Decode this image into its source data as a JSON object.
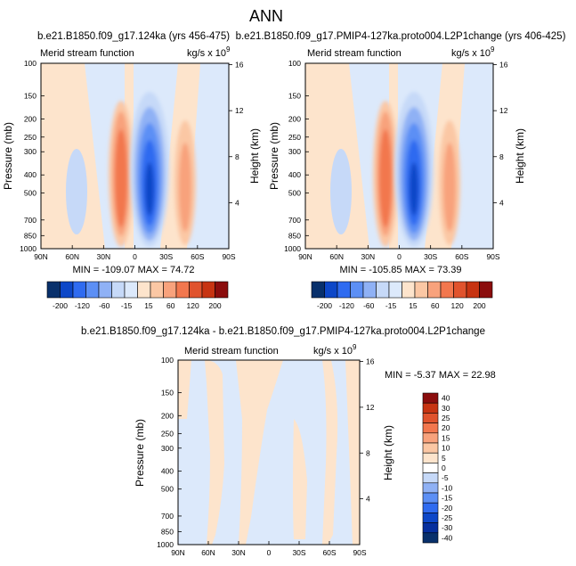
{
  "page_title": "ANN",
  "chart_data": [
    {
      "type": "heatmap",
      "title": "b.e21.B1850.f09_g17.124ka (yrs 456-475)",
      "subtitle_left": "Merid stream function",
      "units": "kg/s x 10",
      "units_exp": "9",
      "ylabel": "Pressure (mb)",
      "ylabel_right": "Height (km)",
      "x_ticks": [
        "90N",
        "60N",
        "30N",
        "0",
        "30S",
        "60S",
        "90S"
      ],
      "y_ticks": [
        "100",
        "150",
        "200",
        "250",
        "300",
        "400",
        "500",
        "700",
        "850",
        "1000"
      ],
      "y_right_ticks": [
        "16",
        "12",
        "8",
        "4"
      ],
      "stats": "MIN = -109.07   MAX =  74.72",
      "colorbar_labels": [
        "-200",
        "-120",
        "-60",
        "-15",
        "15",
        "60",
        "120",
        "200"
      ]
    },
    {
      "type": "heatmap",
      "title": "b.e21.B1850.f09_g17.PMIP4-127ka.proto004.L2P1change (yrs 406-425)",
      "subtitle_left": "Merid stream function",
      "units": "kg/s x 10",
      "units_exp": "9",
      "ylabel": "Pressure (mb)",
      "ylabel_right": "Height (km)",
      "x_ticks": [
        "90N",
        "60N",
        "30N",
        "0",
        "30S",
        "60S",
        "90S"
      ],
      "y_ticks": [
        "100",
        "150",
        "200",
        "250",
        "300",
        "400",
        "500",
        "700",
        "850",
        "1000"
      ],
      "y_right_ticks": [
        "16",
        "12",
        "8",
        "4"
      ],
      "stats": "MIN = -105.85   MAX =  73.39",
      "colorbar_labels": [
        "-200",
        "-120",
        "-60",
        "-15",
        "15",
        "60",
        "120",
        "200"
      ]
    },
    {
      "type": "heatmap",
      "title": "b.e21.B1850.f09_g17.124ka - b.e21.B1850.f09_g17.PMIP4-127ka.proto004.L2P1change",
      "subtitle_left": "Merid stream function",
      "units": "kg/s x 10",
      "units_exp": "9",
      "ylabel": "Pressure (mb)",
      "ylabel_right": "Height (km)",
      "x_ticks": [
        "90N",
        "60N",
        "30N",
        "0",
        "30S",
        "60S",
        "90S"
      ],
      "y_ticks": [
        "100",
        "150",
        "200",
        "250",
        "300",
        "400",
        "500",
        "700",
        "850",
        "1000"
      ],
      "y_right_ticks": [
        "16",
        "12",
        "8",
        "4"
      ],
      "stats": "MIN =  -5.37   MAX =  22.98",
      "colorbar_labels": [
        "40",
        "30",
        "25",
        "20",
        "15",
        "10",
        "5",
        "0",
        "-5",
        "-10",
        "-15",
        "-20",
        "-25",
        "-30",
        "-40"
      ]
    }
  ],
  "colors": {
    "scale": [
      "#08306b",
      "#0d47c8",
      "#2f6bf0",
      "#5c8ff5",
      "#8fb1f5",
      "#c6d9f8",
      "#dce9fb",
      "#fde4cc",
      "#fbc7a4",
      "#f8a27c",
      "#f2774e",
      "#e0532d",
      "#c73412",
      "#8b0d0d"
    ],
    "diff_scale": [
      "#8b0d0d",
      "#c73412",
      "#e0532d",
      "#f2774e",
      "#f8a27c",
      "#fbc7a4",
      "#fde4cc",
      "#ffffff",
      "#c6d9f8",
      "#8fb1f5",
      "#5c8ff5",
      "#2f6bf0",
      "#0d47c8",
      "#062f9e",
      "#08306b"
    ]
  }
}
